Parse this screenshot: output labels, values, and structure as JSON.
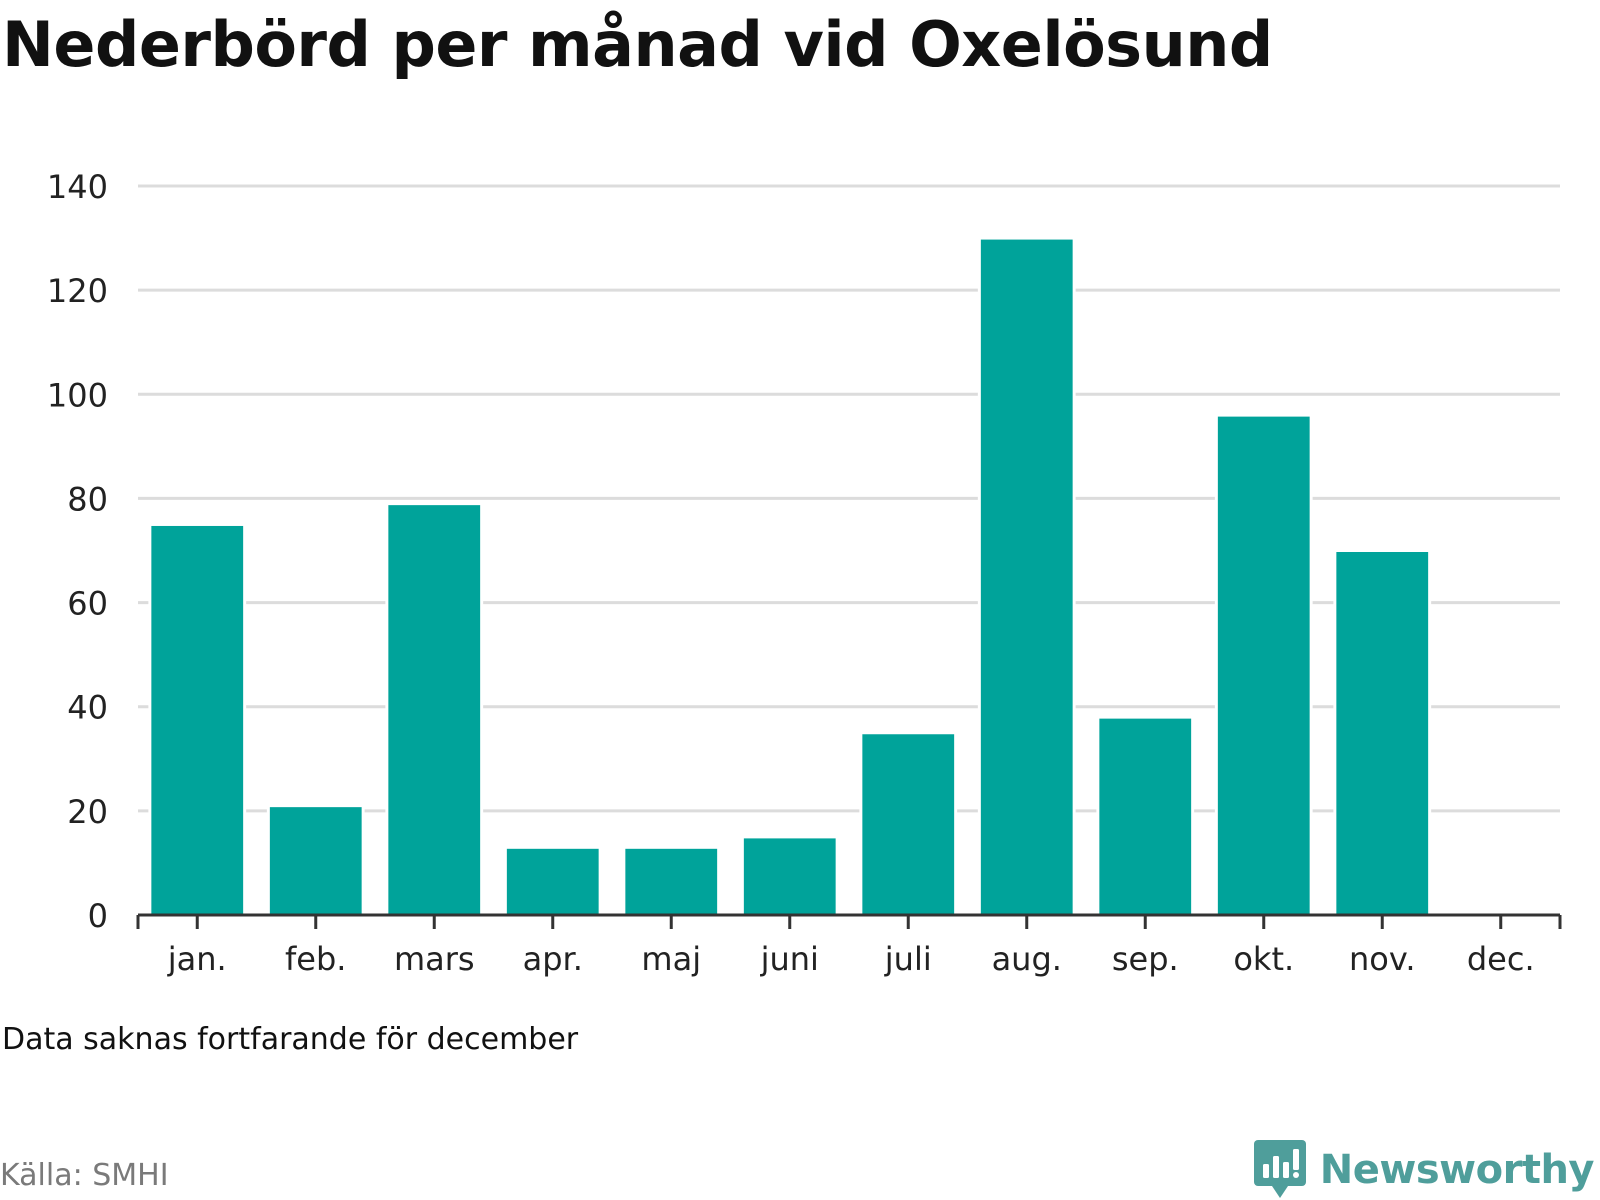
{
  "title": "Nederbörd per månad vid Oxelösund",
  "note": "Data saknas fortfarande för december",
  "source": "Källa: SMHI",
  "brand": {
    "name": "Newsworthy",
    "icon": "newsworthy-logo-icon",
    "color": "#4f9e9b"
  },
  "colors": {
    "bar": "#00a39a",
    "grid": "#dcdcdc",
    "axis": "#333333",
    "tick_label": "#222222"
  },
  "chart_data": {
    "type": "bar",
    "categories": [
      "jan.",
      "feb.",
      "mars",
      "apr.",
      "maj",
      "juni",
      "juli",
      "aug.",
      "sep.",
      "okt.",
      "nov.",
      "dec."
    ],
    "values": [
      75,
      21,
      79,
      13,
      13,
      15,
      35,
      130,
      38,
      96,
      70,
      null
    ],
    "ylim": [
      0,
      140
    ],
    "yticks": [
      0,
      20,
      40,
      60,
      80,
      100,
      120,
      140
    ],
    "grid": true,
    "xlabel": "",
    "ylabel": ""
  }
}
